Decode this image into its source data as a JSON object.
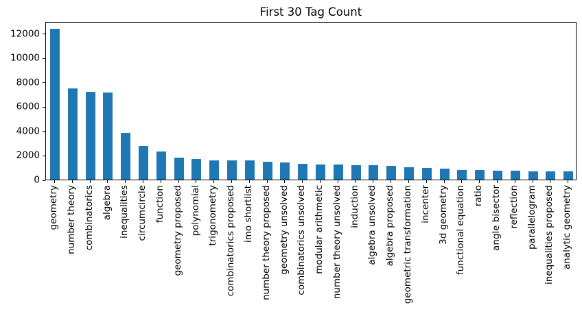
{
  "figure": {
    "background": "#ffffff"
  },
  "chart_data": {
    "type": "bar",
    "title": "First 30 Tag Count",
    "xlabel": "",
    "ylabel": "",
    "categories": [
      "geometry",
      "number theory",
      "combinatorics",
      "algebra",
      "inequalities",
      "circumcircle",
      "function",
      "geometry proposed",
      "polynomial",
      "trigonometry",
      "combinatorics proposed",
      "imo shortlist",
      "number theory proposed",
      "geometry unsolved",
      "combinatorics unsolved",
      "modular arithmetic",
      "number theory unsolved",
      "induction",
      "algebra unsolved",
      "algebra proposed",
      "geometric transformation",
      "incenter",
      "3d geometry",
      "functional equation",
      "ratio",
      "angle bisector",
      "reflection",
      "parallelogram",
      "inequalities proposed",
      "analytic geometry"
    ],
    "values": [
      12390,
      7460,
      7200,
      7120,
      3810,
      2750,
      2300,
      1780,
      1690,
      1580,
      1560,
      1550,
      1460,
      1390,
      1320,
      1250,
      1230,
      1200,
      1160,
      1150,
      1020,
      980,
      900,
      800,
      780,
      730,
      720,
      700,
      660,
      650
    ],
    "ylim": [
      0,
      13000
    ],
    "yticks": [
      0,
      2000,
      4000,
      6000,
      8000,
      10000,
      12000
    ],
    "x_tick_rotation": 90,
    "grid": false,
    "legend_position": "none",
    "bar_color": "#1f77b4",
    "axis_color": "#000000",
    "text_color": "#000000"
  }
}
